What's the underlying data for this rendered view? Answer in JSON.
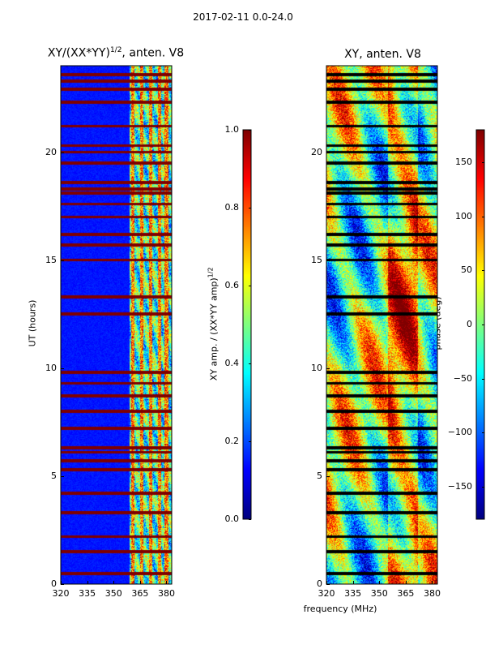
{
  "figure": {
    "supertitle": "2017-02-11 0.0-24.0",
    "xlabel": "frequency (MHz)"
  },
  "colors": {
    "jet": [
      "#00007f",
      "#0000ff",
      "#007fff",
      "#00ffff",
      "#7fff7f",
      "#ffff00",
      "#ff7f00",
      "#ff0000",
      "#7f0000"
    ],
    "flag_row": "#7f0000",
    "flag_row_phase": "#000000",
    "background": "#ffffff"
  },
  "chart_data": [
    {
      "type": "heatmap",
      "title_prefix": "XY/(XX*YY)",
      "title_exponent": "1/2",
      "title_suffix": ", anten. V8",
      "xlabel": "",
      "ylabel": "UT (hours)",
      "xlim": [
        320,
        383
      ],
      "ylim": [
        0,
        24
      ],
      "xticks": [
        "320",
        "335",
        "350",
        "365",
        "380"
      ],
      "yticks": [
        "0",
        "5",
        "10",
        "15",
        "20"
      ],
      "xtick_values": [
        320,
        335,
        350,
        365,
        380
      ],
      "ytick_values": [
        0,
        5,
        10,
        15,
        20
      ],
      "active_band_mhz": [
        359,
        383
      ],
      "bright_channels_mhz": [
        361,
        366,
        371,
        376,
        380
      ],
      "flagged_hours": [
        0.5,
        1.5,
        2.2,
        3.3,
        4.2,
        5.3,
        5.7,
        6.1,
        6.3,
        7.2,
        8.0,
        8.7,
        9.3,
        9.8,
        12.5,
        13.3,
        15.0,
        15.7,
        16.2,
        17.0,
        17.6,
        18.1,
        18.3,
        18.6,
        19.5,
        20.0,
        20.3,
        21.2,
        22.3,
        22.9,
        23.3,
        23.6
      ],
      "colorbar": {
        "label_prefix": "XY amp. / (XX*YY amp)",
        "label_exponent": "1/2",
        "ticks": [
          "0.0",
          "0.2",
          "0.4",
          "0.6",
          "0.8",
          "1.0"
        ],
        "tick_values": [
          0.0,
          0.2,
          0.4,
          0.6,
          0.8,
          1.0
        ],
        "range": [
          0.0,
          1.0
        ]
      }
    },
    {
      "type": "heatmap",
      "title_prefix": "XY, anten. V8",
      "title_exponent": "",
      "title_suffix": "",
      "xlabel": "frequency (MHz)",
      "ylabel": "",
      "xlim": [
        320,
        383
      ],
      "ylim": [
        0,
        24
      ],
      "xticks": [
        "320",
        "335",
        "350",
        "365",
        "380"
      ],
      "yticks": [
        "0",
        "5",
        "10",
        "15",
        "20"
      ],
      "xtick_values": [
        320,
        335,
        350,
        365,
        380
      ],
      "ytick_values": [
        0,
        5,
        10,
        15,
        20
      ],
      "flagged_hours": [
        0.5,
        1.5,
        2.2,
        3.3,
        4.2,
        5.3,
        5.7,
        6.1,
        6.3,
        7.2,
        8.0,
        8.7,
        9.3,
        9.8,
        12.5,
        13.3,
        15.0,
        15.7,
        16.2,
        17.0,
        17.6,
        18.1,
        18.3,
        18.6,
        19.5,
        20.0,
        20.3,
        21.2,
        22.3,
        22.9,
        23.3,
        23.6
      ],
      "colorbar": {
        "label_prefix": "phase (deg)",
        "label_exponent": "",
        "ticks": [
          "−150",
          "−100",
          "−50",
          "0",
          "50",
          "100",
          "150"
        ],
        "tick_values": [
          -150,
          -100,
          -50,
          0,
          50,
          100,
          150
        ],
        "range": [
          -180,
          180
        ]
      }
    }
  ]
}
